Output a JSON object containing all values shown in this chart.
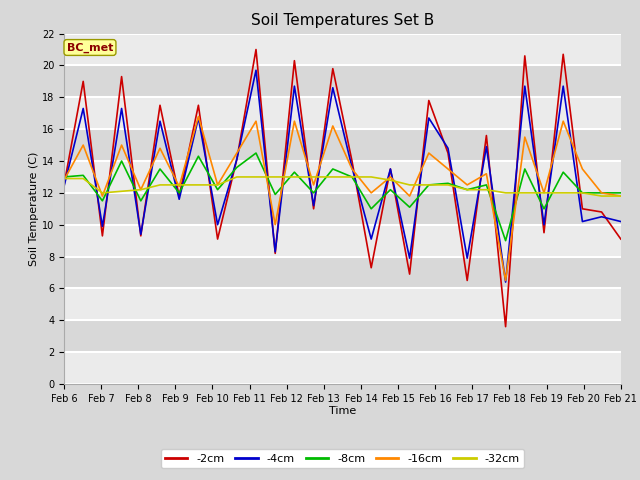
{
  "title": "Soil Temperatures Set B",
  "xlabel": "Time",
  "ylabel": "Soil Temperature (C)",
  "annotation": "BC_met",
  "ylim": [
    0,
    22
  ],
  "xlim": [
    0,
    15
  ],
  "x_tick_labels": [
    "Feb 6",
    "Feb 7",
    "Feb 8",
    "Feb 9",
    "Feb 10",
    "Feb 11",
    "Feb 12",
    "Feb 13",
    "Feb 14",
    "Feb 15",
    "Feb 16",
    "Feb 17",
    "Feb 18",
    "Feb 19",
    "Feb 20",
    "Feb 21"
  ],
  "series": {
    "-2cm": {
      "color": "#cc0000",
      "linewidth": 1.2,
      "y": [
        12.5,
        19.0,
        9.3,
        19.3,
        9.3,
        17.5,
        11.8,
        17.5,
        9.1,
        14.1,
        21.0,
        8.2,
        20.3,
        11.0,
        19.8,
        14.0,
        7.3,
        13.5,
        6.9,
        17.8,
        14.5,
        6.5,
        15.6,
        3.6,
        20.6,
        9.5,
        20.7,
        11.0,
        10.8,
        9.1
      ]
    },
    "-4cm": {
      "color": "#0000cc",
      "linewidth": 1.2,
      "y": [
        12.4,
        17.3,
        9.9,
        17.3,
        9.4,
        16.5,
        11.6,
        16.7,
        10.0,
        14.1,
        19.7,
        8.3,
        18.7,
        11.2,
        18.6,
        13.6,
        9.1,
        13.5,
        7.9,
        16.7,
        14.8,
        7.9,
        14.9,
        6.4,
        18.7,
        10.0,
        18.7,
        10.2,
        10.5,
        10.2
      ]
    },
    "-8cm": {
      "color": "#00bb00",
      "linewidth": 1.2,
      "y": [
        13.0,
        13.1,
        11.5,
        14.0,
        11.5,
        13.5,
        12.0,
        14.3,
        12.2,
        13.6,
        14.5,
        11.9,
        13.3,
        12.0,
        13.5,
        13.0,
        11.0,
        12.2,
        11.1,
        12.5,
        12.6,
        12.2,
        12.5,
        9.0,
        13.5,
        11.0,
        13.3,
        12.0,
        12.0,
        12.0
      ]
    },
    "-16cm": {
      "color": "#ff8800",
      "linewidth": 1.2,
      "y": [
        12.8,
        15.0,
        11.8,
        15.0,
        12.2,
        14.8,
        12.4,
        16.8,
        12.5,
        14.5,
        16.5,
        10.0,
        16.5,
        12.5,
        16.2,
        13.5,
        12.0,
        13.0,
        11.8,
        14.5,
        13.5,
        12.5,
        13.2,
        6.5,
        15.5,
        12.0,
        16.5,
        13.5,
        12.0,
        11.8
      ]
    },
    "-32cm": {
      "color": "#cccc00",
      "linewidth": 1.2,
      "y": [
        12.9,
        12.9,
        12.0,
        12.1,
        12.2,
        12.5,
        12.5,
        12.5,
        12.5,
        13.0,
        13.0,
        13.0,
        13.0,
        13.0,
        13.0,
        13.0,
        13.0,
        12.8,
        12.5,
        12.5,
        12.5,
        12.2,
        12.2,
        12.0,
        12.0,
        12.0,
        12.0,
        12.0,
        11.8,
        11.8
      ]
    }
  },
  "background_color": "#d8d8d8",
  "plot_bg_color": "#d8d8d8",
  "grid_color": "#ffffff",
  "title_fontsize": 11,
  "axis_label_fontsize": 8,
  "tick_fontsize": 7,
  "legend_fontsize": 8
}
